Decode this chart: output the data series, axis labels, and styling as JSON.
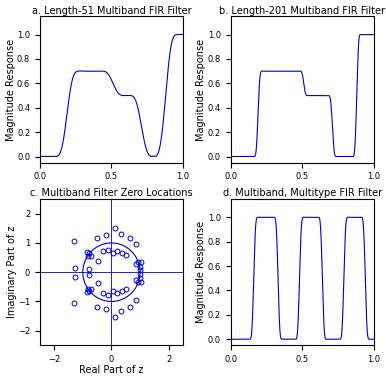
{
  "title_a": "a. Length-51 Multiband FIR Filter",
  "title_b": "b. Length-201 Multiband FIR Filter",
  "title_c": "c. Multiband Filter Zero Locations",
  "title_d": "d. Multiband, Multitype FIR Filter",
  "ylabel_ab": "Magnitude Response",
  "ylabel_c_y": "Imaginary Part of z",
  "xlabel_c": "Real Part of z",
  "bg_color": "#ffffff",
  "line_color": "#0000cc",
  "font_size": 7,
  "title_font_size": 7
}
